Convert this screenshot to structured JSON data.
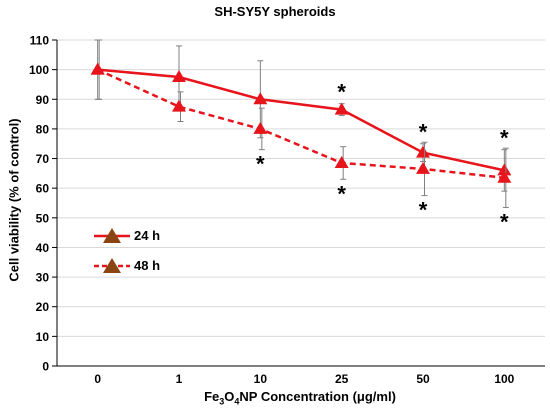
{
  "chart_data": {
    "type": "line",
    "title": "SH-SY5Y spheroids",
    "ylabel": "Cell viability (% of control)",
    "xlabel_parts": [
      "Fe",
      "3",
      "O",
      "4",
      "NP Concentration (μg/ml)"
    ],
    "categories": [
      "0",
      "1",
      "10",
      "25",
      "50",
      "100"
    ],
    "ylim": [
      0,
      110
    ],
    "yticks": [
      0,
      10,
      20,
      30,
      40,
      50,
      60,
      70,
      80,
      90,
      100,
      110
    ],
    "grid": true,
    "legend_position": "left",
    "series": [
      {
        "name": "24 h",
        "style": "solid",
        "color": "#e8141c",
        "values": [
          100,
          97.5,
          90,
          86.5,
          72,
          66
        ],
        "error": [
          10,
          10.5,
          13,
          2,
          3,
          7
        ],
        "significant": [
          false,
          false,
          false,
          true,
          true,
          true
        ]
      },
      {
        "name": "48 h",
        "style": "dashed",
        "color": "#e8141c",
        "values": [
          100,
          87.5,
          80,
          68.5,
          66.5,
          63.5
        ],
        "error": [
          10,
          5,
          7,
          5.5,
          9,
          10
        ],
        "significant": [
          false,
          false,
          true,
          true,
          true,
          true
        ]
      }
    ],
    "significance_mark": "*"
  }
}
